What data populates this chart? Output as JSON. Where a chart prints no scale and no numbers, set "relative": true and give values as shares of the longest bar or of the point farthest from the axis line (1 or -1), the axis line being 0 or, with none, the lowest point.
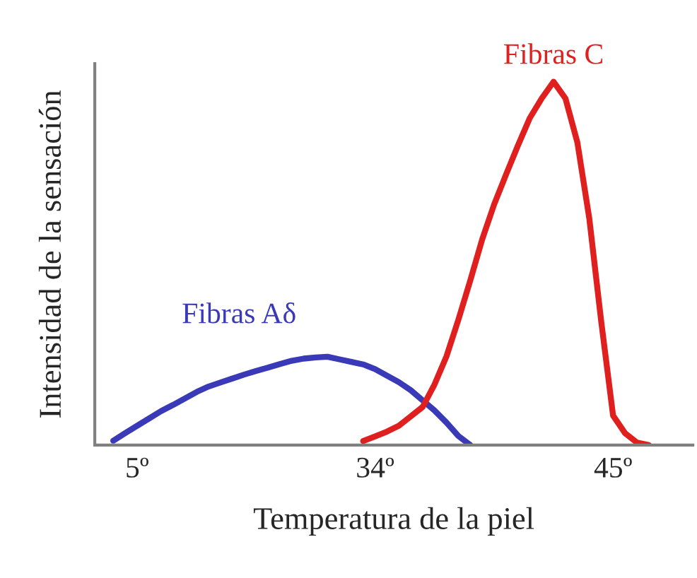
{
  "chart_data": {
    "type": "line",
    "relative": true,
    "xlabel": "Temperatura de la piel",
    "ylabel": "Intensidad de la sensación",
    "categories": [
      null,
      null,
      null,
      "5º",
      null,
      null,
      null,
      null,
      null,
      null,
      null,
      null,
      null,
      null,
      null,
      null,
      null,
      null,
      null,
      null,
      null,
      null,
      null,
      "34º",
      null,
      null,
      null,
      null,
      null,
      null,
      null,
      null,
      null,
      null,
      null,
      null,
      null,
      null,
      null,
      null,
      null,
      null,
      null,
      "45º",
      null,
      null,
      null
    ],
    "grid": false,
    "legend": false,
    "marker": "none",
    "line_style": "solid",
    "series": [
      {
        "name": "Fibras Aδ",
        "color": "#3a3ab8",
        "values": [
          null,
          0.012,
          0.033,
          0.053,
          0.073,
          0.093,
          0.11,
          0.128,
          0.146,
          0.161,
          0.172,
          0.183,
          0.194,
          0.204,
          0.213,
          0.223,
          0.232,
          0.238,
          0.241,
          0.243,
          0.236,
          0.229,
          0.222,
          0.209,
          0.191,
          0.173,
          0.151,
          0.123,
          0.095,
          0.062,
          0.025,
          0,
          null,
          null,
          null,
          null,
          null,
          null,
          null,
          null,
          null,
          null,
          null,
          null,
          null,
          null,
          null
        ]
      },
      {
        "name": "Fibras C",
        "color": "#e01f1f",
        "values": [
          null,
          null,
          null,
          null,
          null,
          null,
          null,
          null,
          null,
          null,
          null,
          null,
          null,
          null,
          null,
          null,
          null,
          null,
          null,
          null,
          null,
          null,
          0.011,
          0.024,
          0.037,
          0.053,
          0.079,
          0.105,
          0.167,
          0.244,
          0.345,
          0.453,
          0.566,
          0.662,
          0.744,
          0.824,
          0.9,
          0.954,
          1.0,
          0.954,
          0.833,
          0.624,
          0.341,
          0.081,
          0.033,
          0.007,
          0
        ]
      }
    ]
  }
}
